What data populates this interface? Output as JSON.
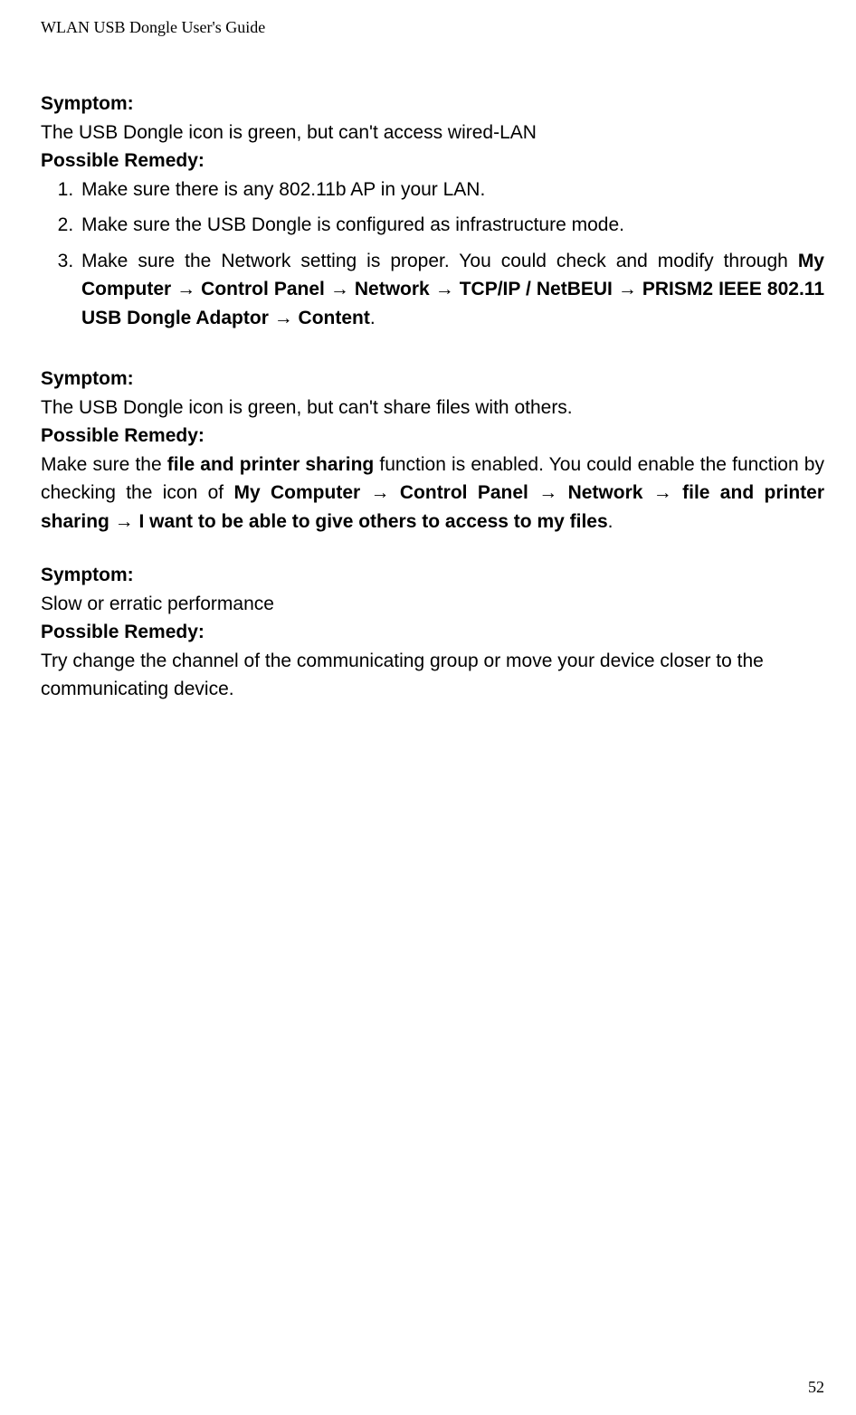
{
  "header": "WLAN USB Dongle User's Guide",
  "pageNumber": "52",
  "section1": {
    "symptomLabel": "Symptom:",
    "symptomText": "The USB Dongle icon is green, but can't access wired-LAN",
    "remedyLabel": "Possible Remedy:",
    "li1": "Make sure there is any 802.11b AP in your LAN.",
    "li2": "Make sure the USB Dongle is configured as infrastructure mode.",
    "li3_pre": "Make sure the Network setting is proper. You could check and modify through ",
    "li3_bold": "My Computer → Control Panel → Network → TCP/IP / NetBEUI → PRISM2 IEEE 802.11 USB Dongle Adaptor → Content",
    "li3_post": "."
  },
  "section2": {
    "symptomLabel": "Symptom:",
    "symptomText": "The USB Dongle icon is green, but can't share files with others.",
    "remedyLabel": "Possible Remedy:",
    "body_pre": "Make sure the ",
    "body_b1": "file and printer sharing",
    "body_mid": " function is enabled. You could enable the function by checking the icon of ",
    "body_b2": "My Computer → Control Panel → Network → file and printer sharing → I want to be able to give others to access to my files",
    "body_post": "."
  },
  "section3": {
    "symptomLabel": "Symptom:",
    "symptomText": "Slow or erratic performance",
    "remedyLabel": "Possible Remedy:",
    "body": "Try change the channel of the communicating group or move your device closer to the communicating device."
  }
}
